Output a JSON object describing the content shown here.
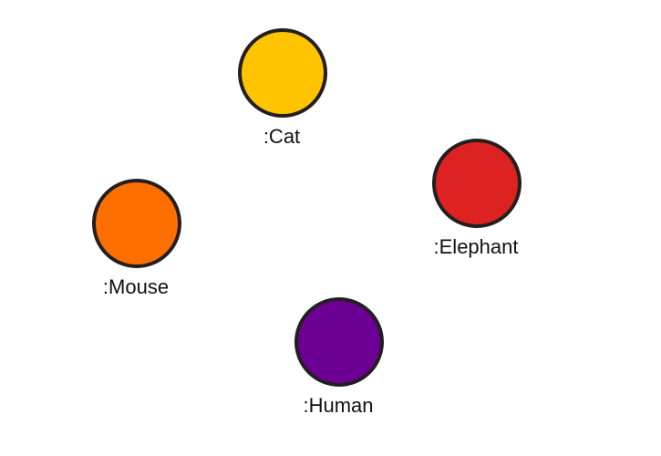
{
  "nodes": [
    {
      "label": ":Cat",
      "color": "#ffc400"
    },
    {
      "label": ":Elephant",
      "color": "#dd2222"
    },
    {
      "label": ":Mouse",
      "color": "#ff6f00"
    },
    {
      "label": ":Human",
      "color": "#6d0094"
    }
  ],
  "outline_color": "#231f20"
}
